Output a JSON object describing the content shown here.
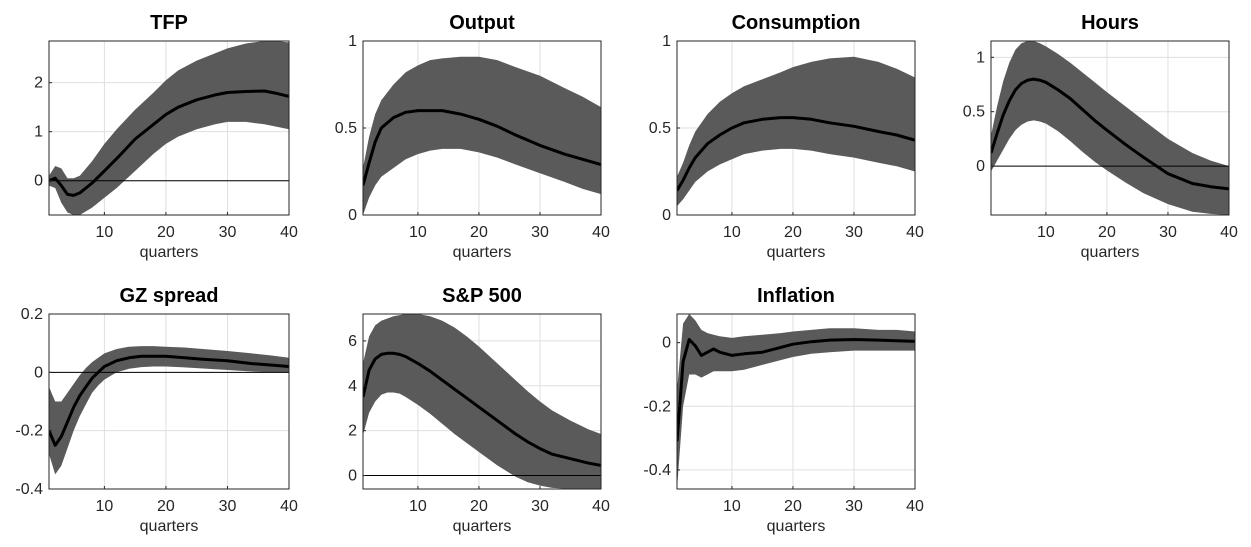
{
  "figure": {
    "xlabel": "quarters",
    "colors": {
      "band": "#5a5a5a",
      "line": "#000000",
      "grid": "#dfdfdf",
      "zero": "#000000",
      "axis": "#262626"
    }
  },
  "chart_data": [
    {
      "type": "area",
      "title": "TFP",
      "xlabel": "quarters",
      "xlim": [
        1,
        40
      ],
      "ylim": [
        -0.7,
        2.85
      ],
      "yticks": [
        0,
        1,
        2
      ],
      "xticks": [
        10,
        20,
        30,
        40
      ],
      "grid": true,
      "zero_line": true,
      "x": [
        1,
        2,
        3,
        4,
        5,
        6,
        8,
        10,
        12,
        15,
        18,
        20,
        22,
        25,
        28,
        30,
        33,
        36,
        38,
        40
      ],
      "y": [
        0.0,
        0.05,
        -0.1,
        -0.28,
        -0.3,
        -0.25,
        -0.05,
        0.2,
        0.45,
        0.85,
        1.15,
        1.35,
        1.5,
        1.65,
        1.75,
        1.8,
        1.82,
        1.83,
        1.78,
        1.72
      ],
      "lower": [
        -0.1,
        -0.15,
        -0.45,
        -0.65,
        -0.7,
        -0.7,
        -0.55,
        -0.35,
        -0.15,
        0.2,
        0.55,
        0.75,
        0.9,
        1.05,
        1.15,
        1.2,
        1.2,
        1.15,
        1.1,
        1.05
      ],
      "upper": [
        0.1,
        0.3,
        0.25,
        0.05,
        0.05,
        0.1,
        0.4,
        0.75,
        1.05,
        1.45,
        1.8,
        2.05,
        2.25,
        2.45,
        2.6,
        2.7,
        2.8,
        2.85,
        2.85,
        2.82
      ]
    },
    {
      "type": "area",
      "title": "Output",
      "xlabel": "quarters",
      "xlim": [
        1,
        40
      ],
      "ylim": [
        0,
        1.0
      ],
      "yticks": [
        0,
        0.5,
        1
      ],
      "xticks": [
        10,
        20,
        30,
        40
      ],
      "grid": true,
      "zero_line": false,
      "x": [
        1,
        2,
        3,
        4,
        6,
        8,
        10,
        12,
        14,
        17,
        20,
        23,
        26,
        30,
        34,
        37,
        40
      ],
      "y": [
        0.17,
        0.3,
        0.42,
        0.5,
        0.56,
        0.59,
        0.6,
        0.6,
        0.6,
        0.58,
        0.55,
        0.51,
        0.46,
        0.4,
        0.35,
        0.32,
        0.29
      ],
      "lower": [
        0.0,
        0.1,
        0.17,
        0.22,
        0.27,
        0.32,
        0.35,
        0.37,
        0.38,
        0.38,
        0.36,
        0.33,
        0.29,
        0.24,
        0.19,
        0.15,
        0.12
      ],
      "upper": [
        0.27,
        0.45,
        0.58,
        0.66,
        0.75,
        0.82,
        0.86,
        0.89,
        0.9,
        0.91,
        0.91,
        0.89,
        0.85,
        0.8,
        0.73,
        0.68,
        0.62
      ]
    },
    {
      "type": "area",
      "title": "Consumption",
      "xlabel": "quarters",
      "xlim": [
        1,
        40
      ],
      "ylim": [
        0,
        1.0
      ],
      "yticks": [
        0,
        0.5,
        1
      ],
      "xticks": [
        10,
        20,
        30,
        40
      ],
      "grid": true,
      "zero_line": false,
      "x": [
        1,
        2,
        3,
        4,
        6,
        8,
        10,
        12,
        15,
        18,
        20,
        23,
        26,
        30,
        34,
        37,
        40
      ],
      "y": [
        0.14,
        0.2,
        0.27,
        0.33,
        0.41,
        0.46,
        0.5,
        0.53,
        0.55,
        0.56,
        0.56,
        0.55,
        0.53,
        0.51,
        0.48,
        0.46,
        0.43
      ],
      "lower": [
        0.05,
        0.09,
        0.14,
        0.19,
        0.25,
        0.29,
        0.32,
        0.35,
        0.37,
        0.38,
        0.38,
        0.37,
        0.35,
        0.33,
        0.3,
        0.28,
        0.25
      ],
      "upper": [
        0.22,
        0.3,
        0.4,
        0.48,
        0.58,
        0.65,
        0.7,
        0.74,
        0.78,
        0.82,
        0.85,
        0.88,
        0.9,
        0.91,
        0.88,
        0.84,
        0.79
      ]
    },
    {
      "type": "area",
      "title": "Hours",
      "xlabel": "quarters",
      "xlim": [
        1,
        40
      ],
      "ylim": [
        -0.45,
        1.15
      ],
      "yticks": [
        0,
        0.5,
        1
      ],
      "xticks": [
        10,
        20,
        30,
        40
      ],
      "grid": true,
      "zero_line": true,
      "x": [
        1,
        2,
        3,
        4,
        5,
        6,
        7,
        8,
        9,
        10,
        12,
        14,
        16,
        18,
        20,
        23,
        26,
        30,
        34,
        37,
        40
      ],
      "y": [
        0.12,
        0.3,
        0.47,
        0.6,
        0.7,
        0.76,
        0.79,
        0.8,
        0.79,
        0.77,
        0.7,
        0.62,
        0.52,
        0.42,
        0.33,
        0.2,
        0.08,
        -0.07,
        -0.16,
        -0.19,
        -0.21
      ],
      "lower": [
        -0.05,
        0.05,
        0.15,
        0.25,
        0.33,
        0.38,
        0.41,
        0.42,
        0.41,
        0.39,
        0.32,
        0.23,
        0.13,
        0.04,
        -0.04,
        -0.15,
        -0.25,
        -0.35,
        -0.42,
        -0.44,
        -0.45
      ],
      "upper": [
        0.28,
        0.55,
        0.78,
        0.95,
        1.07,
        1.13,
        1.15,
        1.15,
        1.13,
        1.1,
        1.03,
        0.95,
        0.86,
        0.77,
        0.68,
        0.55,
        0.42,
        0.25,
        0.12,
        0.05,
        0.0
      ]
    },
    {
      "type": "area",
      "title": "GZ spread",
      "xlabel": "quarters",
      "xlim": [
        1,
        40
      ],
      "ylim": [
        -0.4,
        0.2
      ],
      "yticks": [
        -0.4,
        -0.2,
        0,
        0.2
      ],
      "xticks": [
        10,
        20,
        30,
        40
      ],
      "grid": true,
      "zero_line": true,
      "x": [
        1,
        2,
        3,
        4,
        5,
        6,
        7,
        8,
        9,
        10,
        12,
        14,
        16,
        18,
        20,
        23,
        26,
        30,
        34,
        37,
        40
      ],
      "y": [
        -0.2,
        -0.25,
        -0.22,
        -0.17,
        -0.12,
        -0.08,
        -0.05,
        -0.02,
        0.0,
        0.02,
        0.04,
        0.05,
        0.055,
        0.055,
        0.055,
        0.05,
        0.045,
        0.04,
        0.03,
        0.025,
        0.02
      ],
      "lower": [
        -0.28,
        -0.35,
        -0.32,
        -0.26,
        -0.2,
        -0.15,
        -0.11,
        -0.07,
        -0.045,
        -0.025,
        0.0,
        0.012,
        0.018,
        0.02,
        0.02,
        0.017,
        0.013,
        0.008,
        0.003,
        0.0,
        0.0
      ],
      "upper": [
        -0.05,
        -0.1,
        -0.1,
        -0.07,
        -0.04,
        -0.01,
        0.015,
        0.035,
        0.05,
        0.065,
        0.08,
        0.088,
        0.09,
        0.09,
        0.088,
        0.085,
        0.08,
        0.073,
        0.065,
        0.058,
        0.05
      ]
    },
    {
      "type": "area",
      "title": "S&P 500",
      "xlabel": "quarters",
      "xlim": [
        1,
        40
      ],
      "ylim": [
        -0.6,
        7.2
      ],
      "yticks": [
        0,
        2,
        4,
        6
      ],
      "xticks": [
        10,
        20,
        30,
        40
      ],
      "grid": true,
      "zero_line": true,
      "x": [
        1,
        2,
        3,
        4,
        5,
        6,
        7,
        8,
        10,
        12,
        14,
        16,
        18,
        20,
        23,
        26,
        28,
        30,
        32,
        35,
        38,
        40
      ],
      "y": [
        3.5,
        4.7,
        5.2,
        5.4,
        5.45,
        5.45,
        5.4,
        5.3,
        5.0,
        4.65,
        4.25,
        3.85,
        3.45,
        3.05,
        2.45,
        1.85,
        1.5,
        1.2,
        0.95,
        0.75,
        0.55,
        0.45
      ],
      "lower": [
        1.8,
        2.8,
        3.3,
        3.6,
        3.7,
        3.7,
        3.65,
        3.5,
        3.15,
        2.75,
        2.3,
        1.85,
        1.45,
        1.05,
        0.45,
        -0.05,
        -0.3,
        -0.45,
        -0.55,
        -0.6,
        -0.6,
        -0.6
      ],
      "upper": [
        5.0,
        6.2,
        6.7,
        6.9,
        7.0,
        7.1,
        7.15,
        7.2,
        7.2,
        7.1,
        6.9,
        6.6,
        6.2,
        5.75,
        5.0,
        4.25,
        3.75,
        3.3,
        2.9,
        2.45,
        2.05,
        1.85
      ]
    },
    {
      "type": "area",
      "title": "Inflation",
      "xlabel": "quarters",
      "xlim": [
        1,
        40
      ],
      "ylim": [
        -0.46,
        0.09
      ],
      "yticks": [
        -0.4,
        -0.2,
        0
      ],
      "xticks": [
        10,
        20,
        30,
        40
      ],
      "grid": true,
      "zero_line": false,
      "x": [
        1,
        2,
        3,
        4,
        5,
        6,
        7,
        8,
        10,
        12,
        15,
        18,
        20,
        23,
        26,
        30,
        34,
        37,
        40
      ],
      "y": [
        -0.31,
        -0.06,
        0.01,
        -0.01,
        -0.04,
        -0.03,
        -0.02,
        -0.03,
        -0.04,
        -0.035,
        -0.03,
        -0.015,
        -0.005,
        0.003,
        0.008,
        0.01,
        0.008,
        0.006,
        0.004
      ],
      "lower": [
        -0.46,
        -0.2,
        -0.1,
        -0.1,
        -0.11,
        -0.1,
        -0.09,
        -0.09,
        -0.09,
        -0.085,
        -0.07,
        -0.055,
        -0.045,
        -0.035,
        -0.03,
        -0.025,
        -0.025,
        -0.025,
        -0.025
      ],
      "upper": [
        -0.15,
        0.06,
        0.09,
        0.07,
        0.04,
        0.03,
        0.025,
        0.02,
        0.015,
        0.02,
        0.025,
        0.03,
        0.035,
        0.04,
        0.045,
        0.045,
        0.04,
        0.04,
        0.035
      ]
    }
  ]
}
